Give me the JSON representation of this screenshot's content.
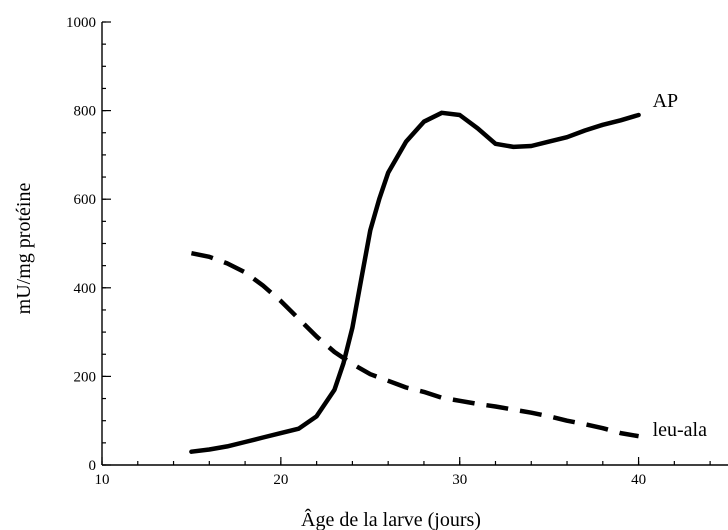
{
  "chart_data": {
    "type": "line",
    "xlabel": "Âge de la larve (jours)",
    "ylabel": "mU/mg protéine",
    "xlim": [
      10,
      45
    ],
    "ylim": [
      0,
      1000
    ],
    "x_ticks": [
      10,
      20,
      30,
      40
    ],
    "y_ticks": [
      0,
      200,
      400,
      600,
      800,
      1000
    ],
    "grid": false,
    "legend": "inline labels at line ends",
    "series": [
      {
        "name": "AP",
        "style": "solid",
        "color": "#000000",
        "points": [
          [
            15,
            30
          ],
          [
            16,
            35
          ],
          [
            17,
            42
          ],
          [
            18,
            52
          ],
          [
            19,
            62
          ],
          [
            20,
            72
          ],
          [
            21,
            82
          ],
          [
            22,
            110
          ],
          [
            23,
            170
          ],
          [
            23.5,
            230
          ],
          [
            24,
            310
          ],
          [
            24.5,
            420
          ],
          [
            25,
            530
          ],
          [
            25.5,
            600
          ],
          [
            26,
            660
          ],
          [
            27,
            730
          ],
          [
            28,
            775
          ],
          [
            29,
            795
          ],
          [
            30,
            790
          ],
          [
            31,
            760
          ],
          [
            32,
            725
          ],
          [
            33,
            718
          ],
          [
            34,
            720
          ],
          [
            35,
            730
          ],
          [
            36,
            740
          ],
          [
            37,
            755
          ],
          [
            38,
            768
          ],
          [
            39,
            778
          ],
          [
            40,
            790
          ]
        ]
      },
      {
        "name": "leu-ala",
        "style": "dashed",
        "color": "#000000",
        "points": [
          [
            15,
            478
          ],
          [
            16,
            470
          ],
          [
            17,
            455
          ],
          [
            18,
            435
          ],
          [
            19,
            405
          ],
          [
            20,
            370
          ],
          [
            21,
            330
          ],
          [
            22,
            290
          ],
          [
            23,
            255
          ],
          [
            24,
            228
          ],
          [
            25,
            205
          ],
          [
            26,
            190
          ],
          [
            27,
            175
          ],
          [
            28,
            165
          ],
          [
            29,
            152
          ],
          [
            30,
            145
          ],
          [
            31,
            138
          ],
          [
            32,
            132
          ],
          [
            33,
            125
          ],
          [
            34,
            118
          ],
          [
            35,
            110
          ],
          [
            36,
            100
          ],
          [
            37,
            92
          ],
          [
            38,
            83
          ],
          [
            39,
            72
          ],
          [
            40,
            65
          ]
        ]
      }
    ]
  }
}
